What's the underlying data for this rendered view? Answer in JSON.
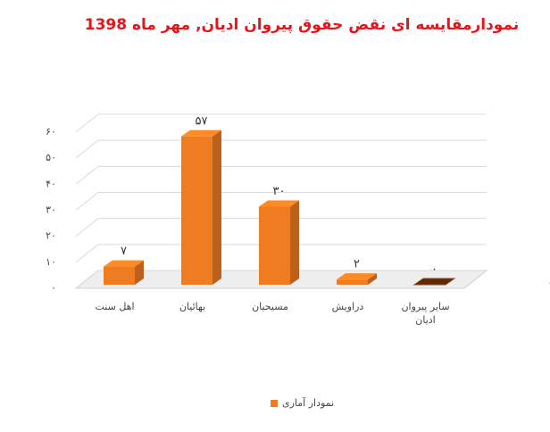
{
  "chart_data": {
    "type": "bar3d",
    "title": "نمودارمقایسه ای نقض حقوق پیروان ادیان, مهر ماه 1398",
    "categories": [
      "اهل سنت",
      "بهائیان",
      "مسیحیان",
      "دراویش",
      "سایر پیروان ادیان"
    ],
    "series": [
      {
        "name": "نمودار آماری",
        "color": "#f07c22",
        "values": [
          7,
          57,
          30,
          2,
          0
        ],
        "value_labels": [
          "۷",
          "۵۷",
          "۳۰",
          "۲",
          "۰"
        ]
      }
    ],
    "ylim": [
      0,
      60
    ],
    "yticks": [
      {
        "value": 0,
        "label": "۰"
      },
      {
        "value": 10,
        "label": "۱۰"
      },
      {
        "value": 20,
        "label": "۲۰"
      },
      {
        "value": 30,
        "label": "۳۰"
      },
      {
        "value": 40,
        "label": "۴۰"
      },
      {
        "value": 50,
        "label": "۵۰"
      },
      {
        "value": 60,
        "label": "۶۰"
      }
    ],
    "grid": true,
    "legend": "bottom"
  }
}
